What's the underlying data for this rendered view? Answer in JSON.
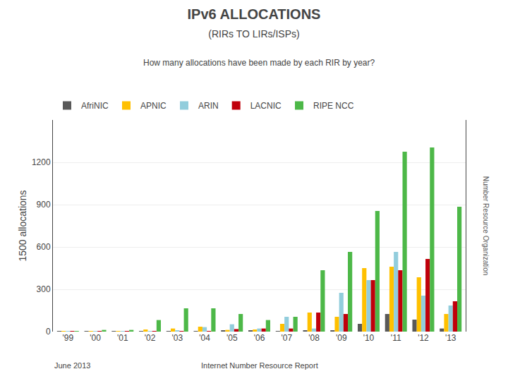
{
  "chart_data": {
    "type": "bar",
    "title": "IPv6 ALLOCATIONS",
    "subtitle": "(RIRs TO LIRs/ISPs)",
    "ylabel": "1500 allocations",
    "annotations": [
      "How many allocations have been made by each RIR by year?",
      "June 2013",
      "Internet Number Resource Report",
      "Number Resource Organization"
    ],
    "categories": [
      "'99",
      "'00",
      "'01",
      "'02",
      "'03",
      "'04",
      "'05",
      "'06",
      "'07",
      "'08",
      "'09",
      "'10",
      "'11",
      "'12",
      "'13"
    ],
    "series": [
      {
        "name": "AfriNIC",
        "color": "#595959",
        "values": [
          1,
          1,
          1,
          2,
          5,
          5,
          10,
          8,
          5,
          8,
          8,
          55,
          125,
          85,
          22
        ]
      },
      {
        "name": "APNIC",
        "color": "#ffc000",
        "values": [
          3,
          5,
          4,
          15,
          22,
          35,
          12,
          15,
          55,
          135,
          105,
          450,
          460,
          385,
          125
        ]
      },
      {
        "name": "ARIN",
        "color": "#92cddc",
        "values": [
          1,
          1,
          1,
          1,
          8,
          32,
          52,
          22,
          105,
          22,
          275,
          365,
          565,
          255,
          185
        ]
      },
      {
        "name": "LACNIC",
        "color": "#c0000b",
        "values": [
          1,
          1,
          1,
          1,
          5,
          5,
          18,
          22,
          22,
          135,
          125,
          365,
          435,
          515,
          215
        ]
      },
      {
        "name": "RIPE NCC",
        "color": "#4db848",
        "values": [
          3,
          12,
          12,
          82,
          165,
          165,
          125,
          82,
          105,
          435,
          565,
          855,
          1275,
          1305,
          885
        ]
      }
    ],
    "ylim": [
      0,
      1500
    ],
    "yticks": [
      0,
      300,
      600,
      900,
      1200
    ],
    "grid": true,
    "legend": "upper left"
  }
}
